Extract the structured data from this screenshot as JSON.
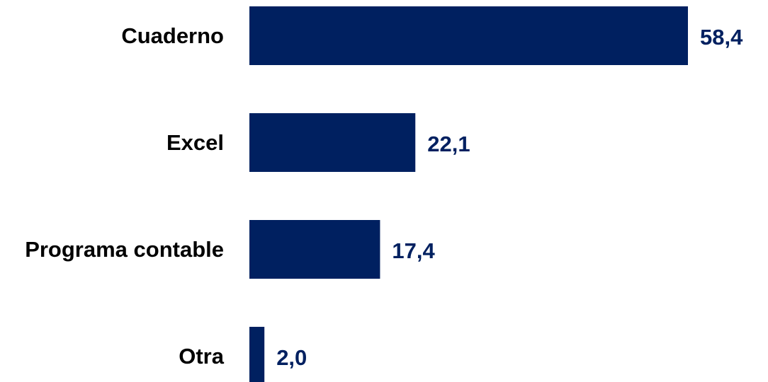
{
  "chart_data": {
    "type": "bar",
    "orientation": "horizontal",
    "categories": [
      "Cuaderno",
      "Excel",
      "Programa contable",
      "Otra"
    ],
    "values": [
      58.4,
      22.1,
      17.4,
      2.0
    ],
    "value_labels": [
      "58,4",
      "22,1",
      "17,4",
      "2,0"
    ],
    "xlim": [
      0,
      58.4
    ],
    "grid": false,
    "legend": "none",
    "bar_color": "#002060",
    "value_label_color": "#002060"
  }
}
